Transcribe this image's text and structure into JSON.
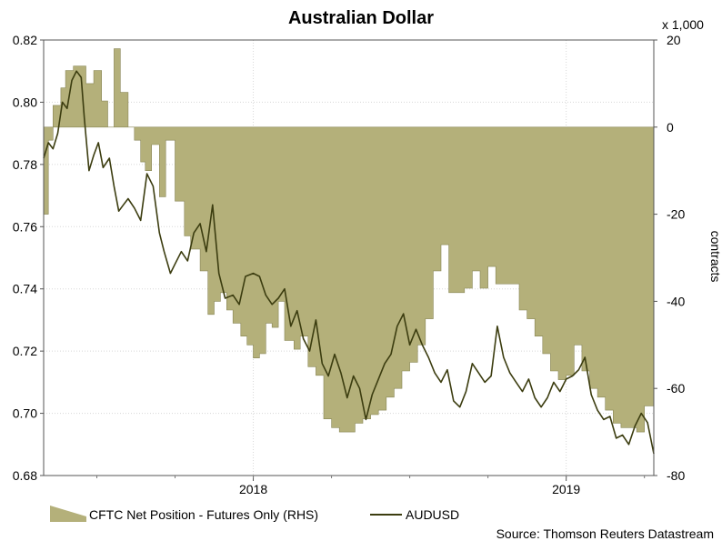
{
  "chart_data": {
    "type": "line",
    "title": "Australian Dollar",
    "y2_unit": "x 1,000",
    "y2label": "contracts",
    "source": "Source: Thomson Reuters Datastream",
    "x_ticks": [
      {
        "label": "2018",
        "t": 2018.0
      },
      {
        "label": "2019",
        "t": 2019.0
      }
    ],
    "xlim": [
      2017.33,
      2019.28
    ],
    "ylim": [
      0.68,
      0.82
    ],
    "y_ticks": [
      "0.68",
      "0.70",
      "0.72",
      "0.74",
      "0.76",
      "0.78",
      "0.80",
      "0.82"
    ],
    "y2lim": [
      -80,
      20
    ],
    "y2_ticks": [
      "-80",
      "-60",
      "-40",
      "-20",
      "0",
      "20"
    ],
    "grid": true,
    "legend_position": "bottom-left",
    "series": [
      {
        "name": "CFTC Net Position - Futures Only (RHS)",
        "type": "area",
        "axis": "right",
        "color": "#b4b07a",
        "edge_color": "#888655",
        "t": [
          2017.33,
          2017.345,
          2017.36,
          2017.385,
          2017.4,
          2017.425,
          2017.445,
          2017.465,
          2017.49,
          2017.515,
          2017.535,
          2017.555,
          2017.575,
          2017.6,
          2017.62,
          2017.64,
          2017.655,
          2017.675,
          2017.7,
          2017.72,
          2017.75,
          2017.78,
          2017.8,
          2017.83,
          2017.855,
          2017.875,
          2017.895,
          2017.915,
          2017.935,
          2017.96,
          2017.98,
          2018.0,
          2018.02,
          2018.04,
          2018.06,
          2018.08,
          2018.1,
          2018.13,
          2018.15,
          2018.175,
          2018.2,
          2018.225,
          2018.25,
          2018.275,
          2018.3,
          2018.325,
          2018.35,
          2018.375,
          2018.4,
          2018.425,
          2018.45,
          2018.475,
          2018.5,
          2018.525,
          2018.55,
          2018.575,
          2018.6,
          2018.625,
          2018.65,
          2018.675,
          2018.7,
          2018.725,
          2018.75,
          2018.775,
          2018.8,
          2018.825,
          2018.85,
          2018.875,
          2018.9,
          2018.925,
          2018.95,
          2018.975,
          2019.0,
          2019.025,
          2019.05,
          2019.075,
          2019.1,
          2019.125,
          2019.15,
          2019.175,
          2019.2,
          2019.225,
          2019.25,
          2019.28
        ],
        "values": [
          -20,
          -3,
          5,
          9,
          13,
          14,
          14,
          10,
          13,
          6,
          0,
          18,
          8,
          0,
          -3,
          -8,
          -10,
          -4,
          -16,
          -3,
          -17,
          -25,
          -28,
          -33,
          -43,
          -40,
          -38,
          -42,
          -45,
          -48,
          -50,
          -53,
          -52,
          -45,
          -46,
          -40,
          -49,
          -51,
          -48,
          -55,
          -57,
          -67,
          -69,
          -70,
          -70,
          -68,
          -67,
          -66,
          -65,
          -62,
          -60,
          -56,
          -54,
          -50,
          -44,
          -33,
          -27,
          -38,
          -38,
          -37,
          -33,
          -37,
          -32,
          -36,
          -36,
          -36,
          -42,
          -44,
          -48,
          -52,
          -56,
          -58,
          -57,
          -50,
          -56,
          -60,
          -62,
          -65,
          -68,
          -69,
          -69,
          -70,
          -64,
          -64
        ]
      },
      {
        "name": "AUDUSD",
        "type": "line",
        "axis": "left",
        "color": "#3c3d10",
        "t": [
          2017.33,
          2017.345,
          2017.36,
          2017.375,
          2017.39,
          2017.405,
          2017.42,
          2017.435,
          2017.45,
          2017.46,
          2017.475,
          2017.49,
          2017.505,
          2017.52,
          2017.54,
          2017.555,
          2017.57,
          2017.585,
          2017.6,
          2017.62,
          2017.64,
          2017.66,
          2017.68,
          2017.7,
          2017.715,
          2017.735,
          2017.75,
          2017.77,
          2017.79,
          2017.81,
          2017.83,
          2017.85,
          2017.87,
          2017.89,
          2017.91,
          2017.935,
          2017.955,
          2017.975,
          2018.0,
          2018.02,
          2018.04,
          2018.06,
          2018.08,
          2018.1,
          2018.12,
          2018.14,
          2018.16,
          2018.18,
          2018.2,
          2018.22,
          2018.24,
          2018.26,
          2018.28,
          2018.3,
          2018.32,
          2018.34,
          2018.36,
          2018.38,
          2018.4,
          2018.42,
          2018.44,
          2018.46,
          2018.48,
          2018.5,
          2018.52,
          2018.54,
          2018.56,
          2018.58,
          2018.6,
          2018.62,
          2018.64,
          2018.66,
          2018.68,
          2018.7,
          2018.72,
          2018.74,
          2018.76,
          2018.78,
          2018.8,
          2018.82,
          2018.84,
          2018.86,
          2018.88,
          2018.9,
          2018.92,
          2018.94,
          2018.96,
          2018.98,
          2019.0,
          2019.02,
          2019.04,
          2019.06,
          2019.08,
          2019.1,
          2019.12,
          2019.14,
          2019.16,
          2019.18,
          2019.2,
          2019.22,
          2019.24,
          2019.26,
          2019.28
        ],
        "values": [
          0.782,
          0.787,
          0.785,
          0.79,
          0.8,
          0.798,
          0.807,
          0.81,
          0.808,
          0.795,
          0.778,
          0.783,
          0.787,
          0.779,
          0.782,
          0.773,
          0.765,
          0.767,
          0.769,
          0.766,
          0.762,
          0.777,
          0.773,
          0.758,
          0.752,
          0.745,
          0.748,
          0.752,
          0.749,
          0.758,
          0.761,
          0.752,
          0.767,
          0.745,
          0.737,
          0.738,
          0.735,
          0.744,
          0.745,
          0.744,
          0.738,
          0.735,
          0.737,
          0.74,
          0.728,
          0.733,
          0.724,
          0.72,
          0.73,
          0.716,
          0.712,
          0.719,
          0.713,
          0.705,
          0.712,
          0.708,
          0.698,
          0.706,
          0.711,
          0.716,
          0.719,
          0.728,
          0.732,
          0.722,
          0.727,
          0.722,
          0.718,
          0.713,
          0.71,
          0.714,
          0.704,
          0.702,
          0.707,
          0.716,
          0.713,
          0.71,
          0.712,
          0.728,
          0.718,
          0.713,
          0.71,
          0.707,
          0.711,
          0.705,
          0.702,
          0.705,
          0.71,
          0.707,
          0.711,
          0.712,
          0.714,
          0.718,
          0.706,
          0.701,
          0.698,
          0.699,
          0.692,
          0.693,
          0.69,
          0.696,
          0.7,
          0.697,
          0.687
        ]
      }
    ]
  }
}
